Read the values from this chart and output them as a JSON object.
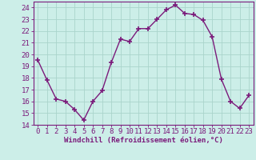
{
  "x": [
    0,
    1,
    2,
    3,
    4,
    5,
    6,
    7,
    8,
    9,
    10,
    11,
    12,
    13,
    14,
    15,
    16,
    17,
    18,
    19,
    20,
    21,
    22,
    23
  ],
  "y": [
    19.5,
    17.8,
    16.2,
    16.0,
    15.3,
    14.4,
    16.0,
    16.9,
    19.3,
    21.3,
    21.1,
    22.2,
    22.2,
    23.0,
    23.8,
    24.2,
    23.5,
    23.4,
    22.9,
    21.5,
    17.9,
    16.0,
    15.4,
    16.5
  ],
  "line_color": "#7B1B7B",
  "marker": "+",
  "marker_size": 4,
  "bg_color": "#cceee8",
  "grid_color": "#aad4cc",
  "xlabel": "Windchill (Refroidissement éolien,°C)",
  "ylim": [
    14,
    24.5
  ],
  "xlim": [
    -0.5,
    23.5
  ],
  "yticks": [
    14,
    15,
    16,
    17,
    18,
    19,
    20,
    21,
    22,
    23,
    24
  ],
  "xticks": [
    0,
    1,
    2,
    3,
    4,
    5,
    6,
    7,
    8,
    9,
    10,
    11,
    12,
    13,
    14,
    15,
    16,
    17,
    18,
    19,
    20,
    21,
    22,
    23
  ],
  "xlabel_fontsize": 6.5,
  "tick_fontsize": 6.5,
  "line_width": 1.0,
  "marker_linewidth": 1.2
}
